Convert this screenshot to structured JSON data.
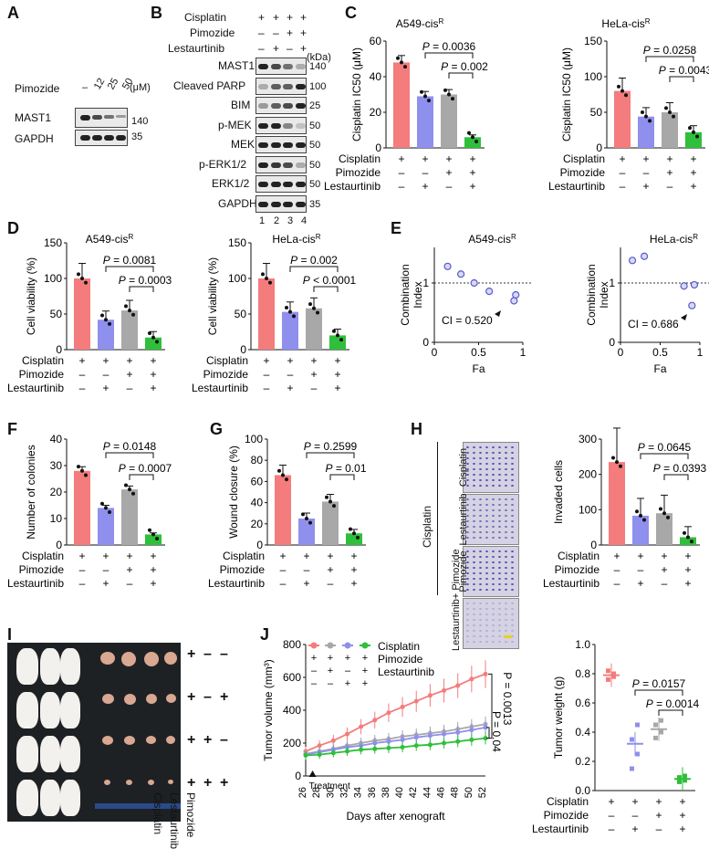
{
  "panels": {
    "A": "A",
    "B": "B",
    "C": "C",
    "D": "D",
    "E": "E",
    "F": "F",
    "G": "G",
    "H": "H",
    "I": "I",
    "J": "J"
  },
  "colors": {
    "red": "#f47c7c",
    "blue": "#8f8fee",
    "gray": "#a8a8a8",
    "green": "#2fbf3a"
  },
  "labels": {
    "cisplatin": "Cisplatin",
    "pimozide": "Pimozide",
    "lestaurtinib": "Lestaurtinib",
    "lest_pim": "Lestaurtinib+ Pimozide",
    "treatment": "Treatment",
    "days": "Days after xenograft",
    "tumor_volume": "Tumor volume (mm³)",
    "tumor_weight": "Tumor weight (g)"
  },
  "panelA": {
    "dose_title": "Pimozide",
    "doses": [
      "–",
      "12",
      "25",
      "50"
    ],
    "unit": "(μM)",
    "bands": [
      "MAST1",
      "GAPDH"
    ],
    "mw": [
      "140",
      "35"
    ]
  },
  "panelB": {
    "rows": [
      {
        "name": "Cisplatin",
        "v": [
          "+",
          "+",
          "+",
          "+"
        ]
      },
      {
        "name": "Pimozide",
        "v": [
          "–",
          "–",
          "+",
          "+"
        ]
      },
      {
        "name": "Lestaurtinib",
        "v": [
          "–",
          "+",
          "–",
          "+"
        ]
      }
    ],
    "kda": "(kDa)",
    "bands": [
      {
        "name": "MAST1",
        "mw": "140"
      },
      {
        "name": "Cleaved PARP",
        "mw": "100"
      },
      {
        "name": "BIM",
        "mw": "25"
      },
      {
        "name": "p-MEK",
        "mw": "50"
      },
      {
        "name": "MEK",
        "mw": "50"
      },
      {
        "name": "p-ERK1/2",
        "mw": "50"
      },
      {
        "name": "ERK1/2",
        "mw": "50"
      },
      {
        "name": "GAPDH",
        "mw": "35"
      }
    ],
    "lanes": [
      "1",
      "2",
      "3",
      "4"
    ]
  },
  "panelH": {
    "images": [
      "Cisplatin",
      "Lestaurtinib",
      "Pimozide",
      "Lestaurtinib+ Pimozide"
    ],
    "side": "Cisplatin"
  },
  "panelI": {
    "rows": [
      [
        "+",
        "–",
        "–"
      ],
      [
        "+",
        "–",
        "+"
      ],
      [
        "+",
        "+",
        "–"
      ],
      [
        "+",
        "+",
        "+"
      ]
    ]
  },
  "chart_data": [
    {
      "id": "C1",
      "type": "bar",
      "title": "A549-cis^R",
      "ylabel": "Cisplatin IC50 (μM)",
      "ylim": [
        0,
        60
      ],
      "ticks": [
        "0",
        "20",
        "40",
        "60"
      ],
      "values": [
        48,
        29,
        30,
        6
      ],
      "pvals": [
        "P = 0.0036",
        "P = 0.002"
      ],
      "treat": [
        [
          "+",
          "+",
          "+",
          "+"
        ],
        [
          "–",
          "–",
          "+",
          "+"
        ],
        [
          "–",
          "+",
          "–",
          "+"
        ]
      ]
    },
    {
      "id": "C2",
      "type": "bar",
      "title": "HeLa-cis^R",
      "ylabel": "Cisplatin IC50 (μM)",
      "ylim": [
        0,
        150
      ],
      "ticks": [
        "0",
        "50",
        "100",
        "150"
      ],
      "values": [
        80,
        44,
        50,
        22
      ],
      "pvals": [
        "P = 0.0258",
        "P = 0.0043"
      ],
      "treat": [
        [
          "+",
          "+",
          "+",
          "+"
        ],
        [
          "–",
          "–",
          "+",
          "+"
        ],
        [
          "–",
          "+",
          "–",
          "+"
        ]
      ]
    },
    {
      "id": "D1",
      "type": "bar",
      "title": "A549-cis^R",
      "ylabel": "Cell viability (%)",
      "ylim": [
        0,
        150
      ],
      "ticks": [
        "0",
        "50",
        "100",
        "150"
      ],
      "values": [
        100,
        42,
        55,
        17
      ],
      "pvals": [
        "P = 0.0081",
        "P = 0.0003"
      ],
      "treat": [
        [
          "+",
          "+",
          "+",
          "+"
        ],
        [
          "–",
          "–",
          "+",
          "+"
        ],
        [
          "–",
          "+",
          "–",
          "+"
        ]
      ]
    },
    {
      "id": "D2",
      "type": "bar",
      "title": "HeLa-cis^R",
      "ylabel": "Cell viability (%)",
      "ylim": [
        0,
        150
      ],
      "ticks": [
        "0",
        "50",
        "100",
        "150"
      ],
      "values": [
        100,
        53,
        58,
        20
      ],
      "pvals": [
        "P = 0.002",
        "P < 0.0001"
      ],
      "treat": [
        [
          "+",
          "+",
          "+",
          "+"
        ],
        [
          "–",
          "–",
          "+",
          "+"
        ],
        [
          "–",
          "+",
          "–",
          "+"
        ]
      ]
    },
    {
      "id": "E1",
      "type": "scatter",
      "title": "A549-cis^R",
      "ylabel": "Combination Index",
      "xlabel": "Fa",
      "xticks": [
        "0",
        "0.5",
        "1"
      ],
      "yticks": [
        "0",
        "1"
      ],
      "points": [
        [
          0.15,
          1.28
        ],
        [
          0.3,
          1.15
        ],
        [
          0.45,
          1.0
        ],
        [
          0.62,
          0.86
        ],
        [
          0.9,
          0.7
        ],
        [
          0.92,
          0.8
        ]
      ],
      "annotation": "CI = 0.520"
    },
    {
      "id": "E2",
      "type": "scatter",
      "title": "HeLa-cis^R",
      "ylabel": "Combination Index",
      "xlabel": "Fa",
      "xticks": [
        "0",
        "0.5",
        "1"
      ],
      "yticks": [
        "0",
        "1"
      ],
      "points": [
        [
          0.15,
          1.38
        ],
        [
          0.3,
          1.45
        ],
        [
          0.8,
          0.95
        ],
        [
          0.9,
          0.62
        ],
        [
          0.93,
          0.97
        ]
      ],
      "annotation": "CI = 0.686"
    },
    {
      "id": "F",
      "type": "bar",
      "ylabel": "Number of colonies",
      "ylim": [
        0,
        40
      ],
      "ticks": [
        "0",
        "10",
        "20",
        "30",
        "40"
      ],
      "values": [
        28,
        14,
        21,
        4
      ],
      "pvals": [
        "P = 0.0148",
        "P = 0.0007"
      ],
      "treat": [
        [
          "+",
          "+",
          "+",
          "+"
        ],
        [
          "–",
          "–",
          "+",
          "+"
        ],
        [
          "–",
          "+",
          "–",
          "+"
        ]
      ]
    },
    {
      "id": "G",
      "type": "bar",
      "ylabel": "Wound closure (%)",
      "ylim": [
        0,
        100
      ],
      "ticks": [
        "0",
        "20",
        "40",
        "60",
        "80",
        "100"
      ],
      "values": [
        66,
        25,
        41,
        11
      ],
      "pvals": [
        "P = 0.2599",
        "P = 0.01"
      ],
      "treat": [
        [
          "+",
          "+",
          "+",
          "+"
        ],
        [
          "–",
          "–",
          "+",
          "+"
        ],
        [
          "–",
          "+",
          "–",
          "+"
        ]
      ]
    },
    {
      "id": "H",
      "type": "bar",
      "ylabel": "Invaded cells",
      "ylim": [
        0,
        300
      ],
      "ticks": [
        "0",
        "100",
        "200",
        "300"
      ],
      "values": [
        235,
        83,
        90,
        22
      ],
      "pvals": [
        "P = 0.0645",
        "P = 0.0393"
      ],
      "treat": [
        [
          "+",
          "+",
          "+",
          "+"
        ],
        [
          "–",
          "–",
          "+",
          "+"
        ],
        [
          "–",
          "+",
          "–",
          "+"
        ]
      ]
    },
    {
      "id": "J1",
      "type": "line",
      "ylabel": "Tumor volume (mm³)",
      "xlabel": "Days after xenograft",
      "xlim": [
        26,
        52
      ],
      "ylim": [
        0,
        800
      ],
      "xticks": [
        "26",
        "28",
        "30",
        "32",
        "34",
        "36",
        "38",
        "40",
        "42",
        "44",
        "46",
        "48",
        "50",
        "52"
      ],
      "yticks": [
        "0",
        "200",
        "400",
        "600",
        "800"
      ],
      "x": [
        26,
        28,
        30,
        32,
        34,
        36,
        38,
        40,
        42,
        44,
        46,
        48,
        50,
        52
      ],
      "series": [
        {
          "name": "Cisplatin only",
          "values": [
            150,
            185,
            215,
            255,
            300,
            340,
            385,
            420,
            455,
            490,
            520,
            550,
            590,
            620
          ]
        },
        {
          "name": "Cisplatin+Pimozide",
          "values": [
            135,
            150,
            165,
            185,
            200,
            215,
            225,
            240,
            250,
            260,
            270,
            285,
            300,
            315
          ]
        },
        {
          "name": "Cisplatin+Lestaurtinib",
          "values": [
            130,
            145,
            160,
            175,
            185,
            200,
            210,
            220,
            235,
            245,
            255,
            265,
            280,
            295
          ]
        },
        {
          "name": "Cisplatin+Pimozide+Lestaurtinib",
          "values": [
            125,
            130,
            140,
            150,
            160,
            165,
            170,
            175,
            185,
            190,
            200,
            210,
            220,
            230
          ]
        }
      ],
      "pvals": [
        "P = 0.0013",
        "P = 0.04"
      ]
    },
    {
      "id": "J2",
      "type": "scatter",
      "ylabel": "Tumor weight (g)",
      "ylim": [
        0,
        1.0
      ],
      "ticks": [
        "0.0",
        "0.2",
        "0.4",
        "0.6",
        "0.8",
        "1.0"
      ],
      "values": [
        0.79,
        0.32,
        0.42,
        0.08
      ],
      "pvals": [
        "P = 0.0157",
        "P = 0.0014"
      ],
      "treat": [
        [
          "+",
          "+",
          "+",
          "+"
        ],
        [
          "–",
          "–",
          "+",
          "+"
        ],
        [
          "–",
          "+",
          "–",
          "+"
        ]
      ]
    }
  ]
}
